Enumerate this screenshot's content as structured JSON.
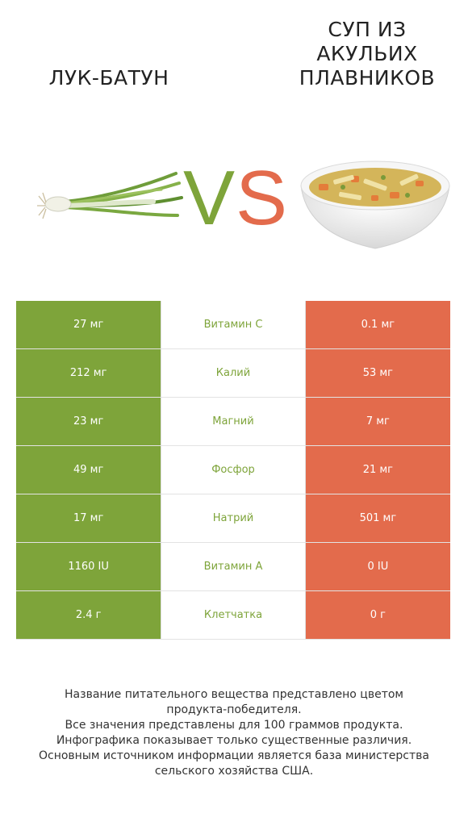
{
  "titles": {
    "left": "ЛУК-БАТУН",
    "right_lines": [
      "СУП ИЗ",
      "АКУЛЬИХ",
      "ПЛАВНИКОВ"
    ]
  },
  "vs": {
    "v": "V",
    "s": "S"
  },
  "colors": {
    "left": "#7ea43a",
    "right": "#e36b4c",
    "mid_text": "#7ea43a"
  },
  "rows": [
    {
      "left": "27 мг",
      "name": "Витамин C",
      "right": "0.1 мг"
    },
    {
      "left": "212 мг",
      "name": "Калий",
      "right": "53 мг"
    },
    {
      "left": "23 мг",
      "name": "Магний",
      "right": "7 мг"
    },
    {
      "left": "49 мг",
      "name": "Фосфор",
      "right": "21 мг"
    },
    {
      "left": "17 мг",
      "name": "Натрий",
      "right": "501 мг"
    },
    {
      "left": "1160 IU",
      "name": "Витамин A",
      "right": "0 IU"
    },
    {
      "left": "2.4 г",
      "name": "Клетчатка",
      "right": "0 г"
    }
  ],
  "footnote": [
    "Название питательного вещества представлено цветом",
    "продукта-победителя.",
    "Все значения представлены для 100 граммов продукта.",
    "Инфографика показывает только существенные различия.",
    "Основным источником информации является база министерства",
    "сельского хозяйства США."
  ]
}
